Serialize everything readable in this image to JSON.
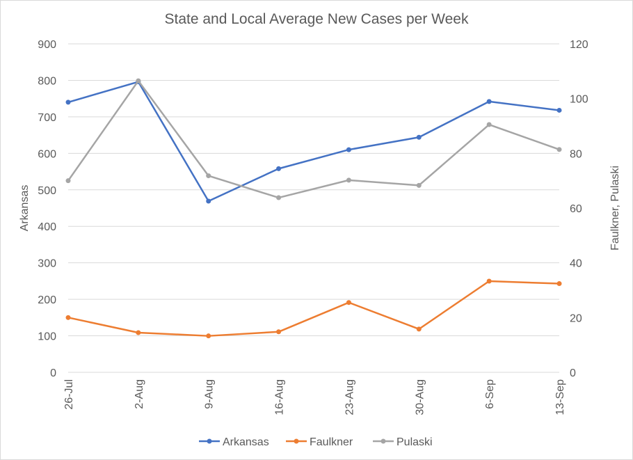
{
  "chart_data": {
    "type": "line",
    "title": "State and Local Average New Cases per Week",
    "categories": [
      "26-Jul",
      "2-Aug",
      "9-Aug",
      "16-Aug",
      "23-Aug",
      "30-Aug",
      "6-Sep",
      "13-Sep"
    ],
    "y_left": {
      "label": "Arkansas",
      "ylim": [
        0,
        900
      ],
      "ticks": [
        0,
        100,
        200,
        300,
        400,
        500,
        600,
        700,
        800,
        900
      ]
    },
    "y_right": {
      "label": "Faulkner, Pulaski",
      "ylim": [
        0,
        120
      ],
      "ticks": [
        0,
        20,
        40,
        60,
        80,
        100,
        120
      ]
    },
    "grid": true,
    "legend": "bottom",
    "series": [
      {
        "name": "Arkansas",
        "axis": "left",
        "color": "#4472c4",
        "values": [
          740,
          796,
          469,
          558,
          610,
          644,
          742,
          718
        ]
      },
      {
        "name": "Faulkner",
        "axis": "right",
        "color": "#ed7d31",
        "values": [
          20,
          14.5,
          13.3,
          14.8,
          25.5,
          15.8,
          33.3,
          32.4
        ]
      },
      {
        "name": "Pulaski",
        "axis": "right",
        "color": "#a5a5a5",
        "values": [
          70,
          106.5,
          71.8,
          63.8,
          70.2,
          68.3,
          90.5,
          81.4
        ]
      }
    ]
  }
}
